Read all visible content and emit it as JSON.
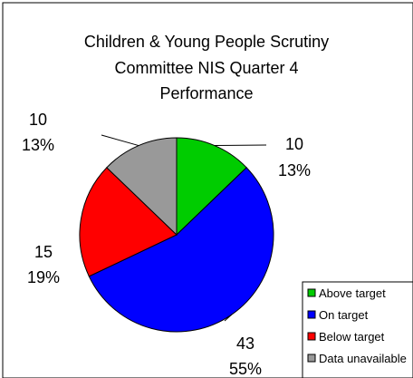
{
  "chart_data": {
    "type": "pie",
    "title_lines": [
      "Children & Young People Scrutiny",
      "Committee NIS Quarter 4",
      "Performance"
    ],
    "slices": [
      {
        "label": "Above target",
        "value": 10,
        "percent_label": "13%",
        "color": "#00cc00"
      },
      {
        "label": "On target",
        "value": 43,
        "percent_label": "55%",
        "color": "#0000ff"
      },
      {
        "label": "Below target",
        "value": 15,
        "percent_label": "19%",
        "color": "#ff0000"
      },
      {
        "label": "Data unavailable",
        "value": 10,
        "percent_label": "13%",
        "color": "#999999"
      }
    ],
    "legend_position": "bottom-right"
  }
}
